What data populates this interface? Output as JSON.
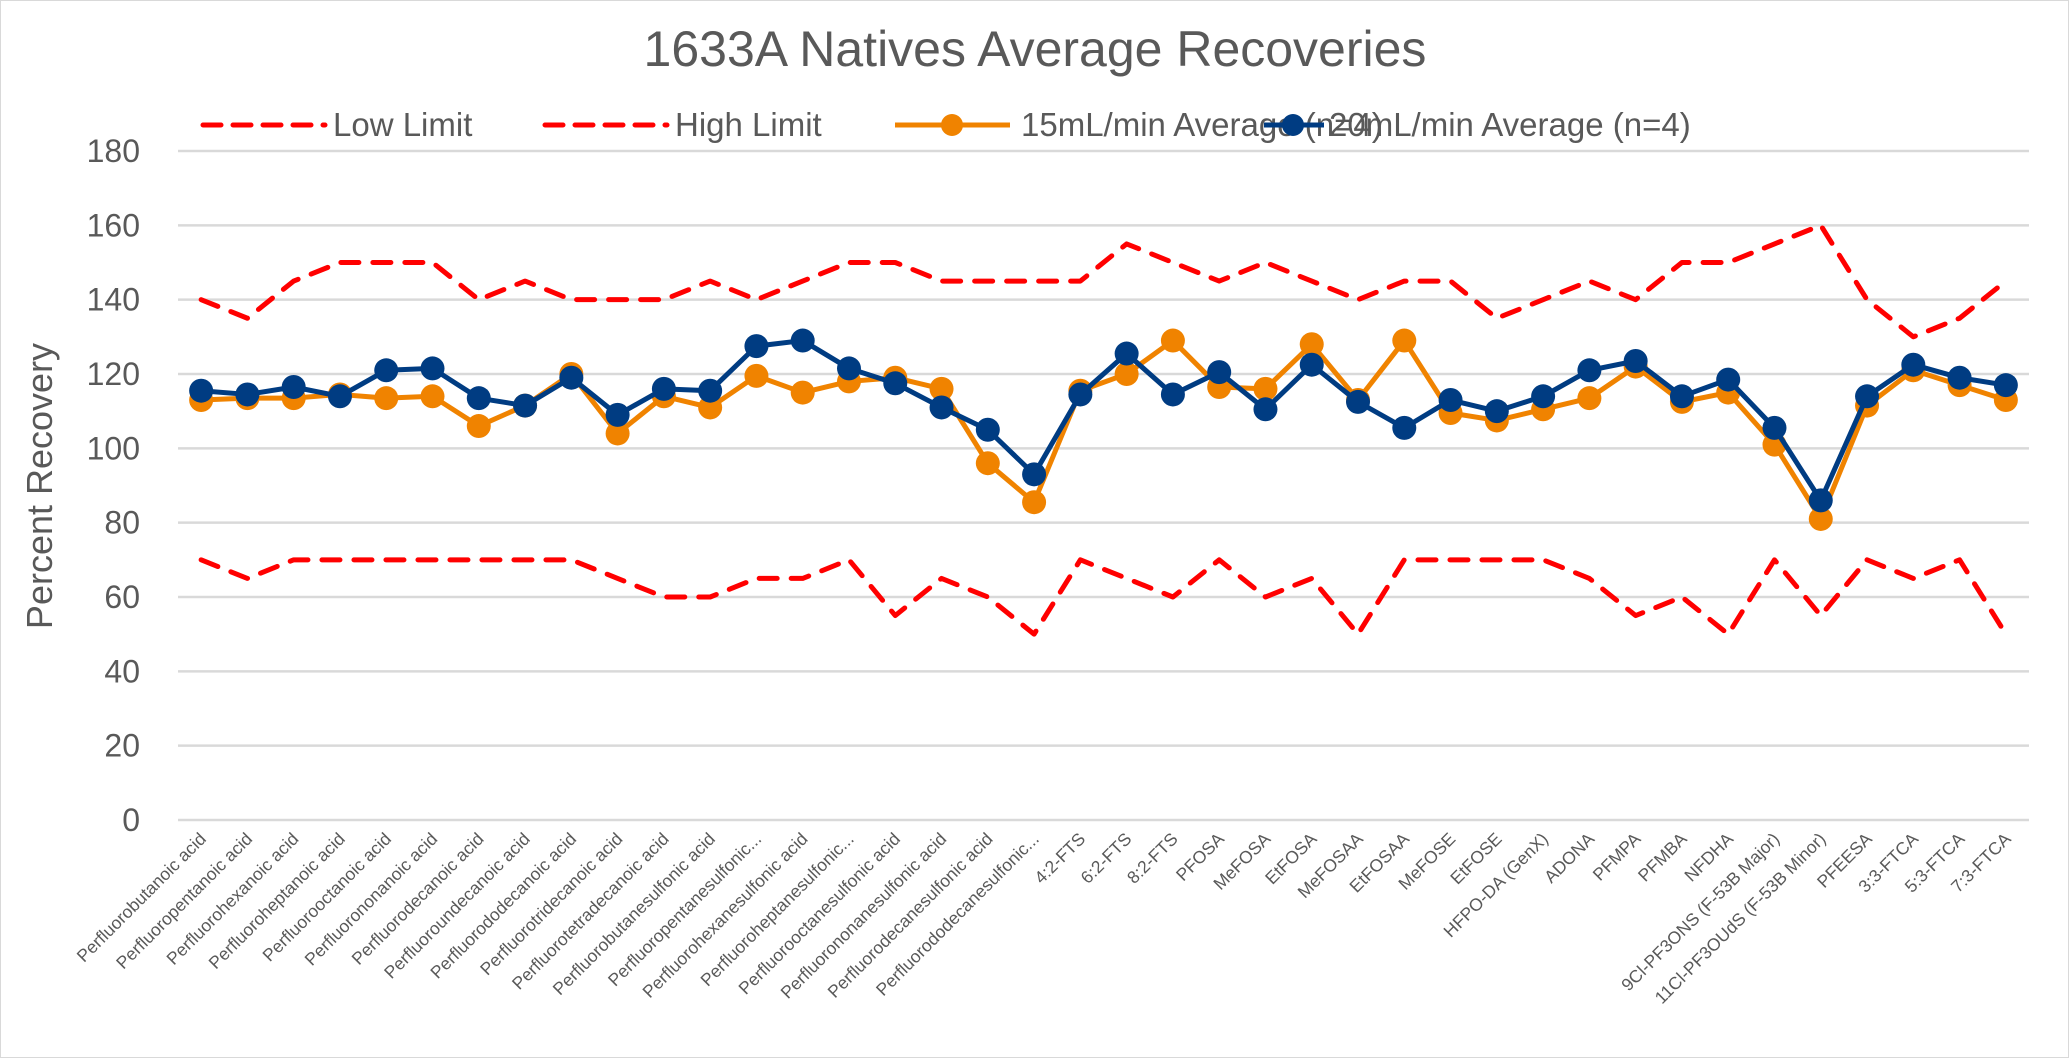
{
  "chart_data": {
    "type": "line",
    "title": "1633A Natives Average Recoveries",
    "xlabel": "",
    "ylabel": "Percent Recovery",
    "ylim": [
      0,
      180
    ],
    "yticks": [
      0,
      20,
      40,
      60,
      80,
      100,
      120,
      140,
      160,
      180
    ],
    "grid": true,
    "legend_position": "top",
    "categories": [
      "Perfluorobutanoic acid",
      "Perfluoropentanoic acid",
      "Perfluorohexanoic acid",
      "Perfluoroheptanoic acid",
      "Perfluorooctanoic acid",
      "Perfluorononanoic acid",
      "Perfluorodecanoic acid",
      "Perfluoroundecanoic acid",
      "Perfluorododecanoic acid",
      "Perfluorotridecanoic acid",
      "Perfluorotetradecanoic acid",
      "Perfluorobutanesulfonic acid",
      "Perfluoropentanesulfonic...",
      "Perfluorohexanesulfonic acid",
      "Perfluoroheptanesulfonic...",
      "Perfluorooctanesulfonic acid",
      "Perfluorononanesulfonic acid",
      "Perfluorodecanesulfonic acid",
      "Perfluorododecanesulfonic...",
      "4:2-FTS",
      "6:2-FTS",
      "8:2-FTS",
      "PFOSA",
      "MeFOSA",
      "EtFOSA",
      "MeFOSAA",
      "EtFOSAA",
      "MeFOSE",
      "EtFOSE",
      "HFPO-DA (GenX)",
      "ADONA",
      "PFMPA",
      "PFMBA",
      "NFDHA",
      "9Cl-PF3ONS (F-53B  Major)",
      "11Cl-PF3OUdS (F-53B Minor)",
      "PFEESA",
      "3:3-FTCA",
      "5:3-FTCA",
      "7:3-FTCA"
    ],
    "series": [
      {
        "name": "Low Limit",
        "color": "#ff0000",
        "style": "dashed",
        "markers": false,
        "values": [
          70,
          65,
          70,
          70,
          70,
          70,
          70,
          70,
          70,
          65,
          60,
          60,
          65,
          65,
          70,
          55,
          65,
          60,
          50,
          70,
          65,
          60,
          70,
          60,
          65,
          50,
          70,
          70,
          70,
          70,
          65,
          55,
          60,
          50,
          70,
          55,
          70,
          65,
          70,
          50
        ]
      },
      {
        "name": "High Limit",
        "color": "#ff0000",
        "style": "dashed",
        "markers": false,
        "values": [
          140,
          135,
          145,
          150,
          150,
          150,
          140,
          145,
          140,
          140,
          140,
          145,
          140,
          145,
          150,
          150,
          145,
          145,
          145,
          145,
          155,
          150,
          145,
          150,
          145,
          140,
          145,
          145,
          135,
          140,
          145,
          140,
          150,
          150,
          155,
          160,
          140,
          130,
          135,
          145
        ]
      },
      {
        "name": "15mL/min Average (n=4)",
        "color": "#f08300",
        "style": "solid",
        "markers": true,
        "values": [
          113,
          113.5,
          113.5,
          114.5,
          113.5,
          114,
          106,
          111.5,
          120,
          104,
          114,
          111,
          119.5,
          115,
          118,
          119,
          116,
          96,
          85.5,
          115.5,
          120,
          129,
          116.5,
          116,
          128,
          113,
          129,
          109.5,
          107.5,
          110.5,
          113.5,
          122,
          112.5,
          115,
          101,
          81,
          111.5,
          121,
          117,
          113
        ]
      },
      {
        "name": "20mL/min Average (n=4)",
        "color": "#003c82",
        "style": "solid",
        "markers": true,
        "values": [
          115.5,
          114.5,
          116.5,
          114,
          121,
          121.5,
          113.5,
          111.5,
          119,
          109,
          116,
          115.5,
          127.5,
          129,
          121.5,
          117.5,
          111,
          105,
          93,
          114.5,
          125.5,
          114.5,
          120.5,
          110.5,
          122.5,
          112.5,
          105.5,
          113,
          110,
          114,
          121,
          123.5,
          114,
          118.5,
          105.5,
          86,
          114,
          122.5,
          119,
          117
        ]
      }
    ]
  }
}
